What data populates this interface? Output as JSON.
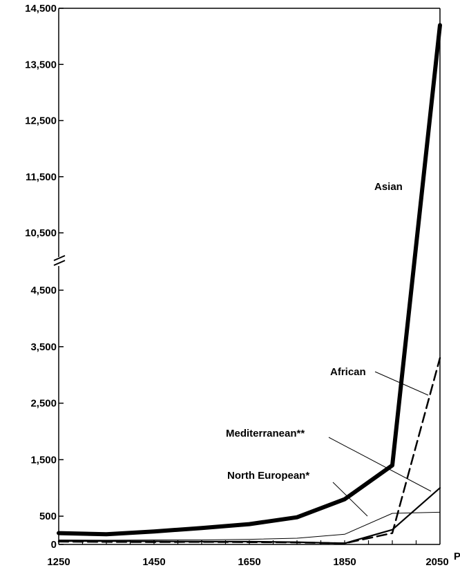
{
  "chart_data": {
    "type": "line",
    "title": "",
    "xlabel": "",
    "ylabel": "",
    "x": [
      1250,
      1350,
      1450,
      1550,
      1650,
      1750,
      1850,
      1950,
      2050
    ],
    "x_tick_labels": [
      "1250",
      "1450",
      "1650",
      "1850",
      "2050"
    ],
    "x_tick_suffix": "P",
    "y_tick_labels": [
      "0",
      "500",
      "1,500",
      "2,500",
      "3,500",
      "4,500",
      "10,500",
      "11,500",
      "12,500",
      "13,500",
      "14,500"
    ],
    "y_axis_break": {
      "from": 5000,
      "to": 10000
    },
    "xlim": [
      1250,
      2050
    ],
    "ylim": [
      0,
      14500
    ],
    "grid": false,
    "series": [
      {
        "name": "Asian",
        "style": "thick",
        "values": [
          200,
          180,
          230,
          290,
          360,
          480,
          800,
          1400,
          14200
        ]
      },
      {
        "name": "African",
        "style": "dashed",
        "values": [
          50,
          45,
          42,
          45,
          40,
          35,
          20,
          200,
          3300
        ]
      },
      {
        "name": "Mediterranean**",
        "style": "medium",
        "values": [
          60,
          60,
          55,
          50,
          50,
          40,
          20,
          260,
          1000
        ]
      },
      {
        "name": "North European*",
        "style": "thin",
        "values": [
          80,
          75,
          80,
          80,
          90,
          110,
          180,
          550,
          570
        ]
      }
    ]
  }
}
